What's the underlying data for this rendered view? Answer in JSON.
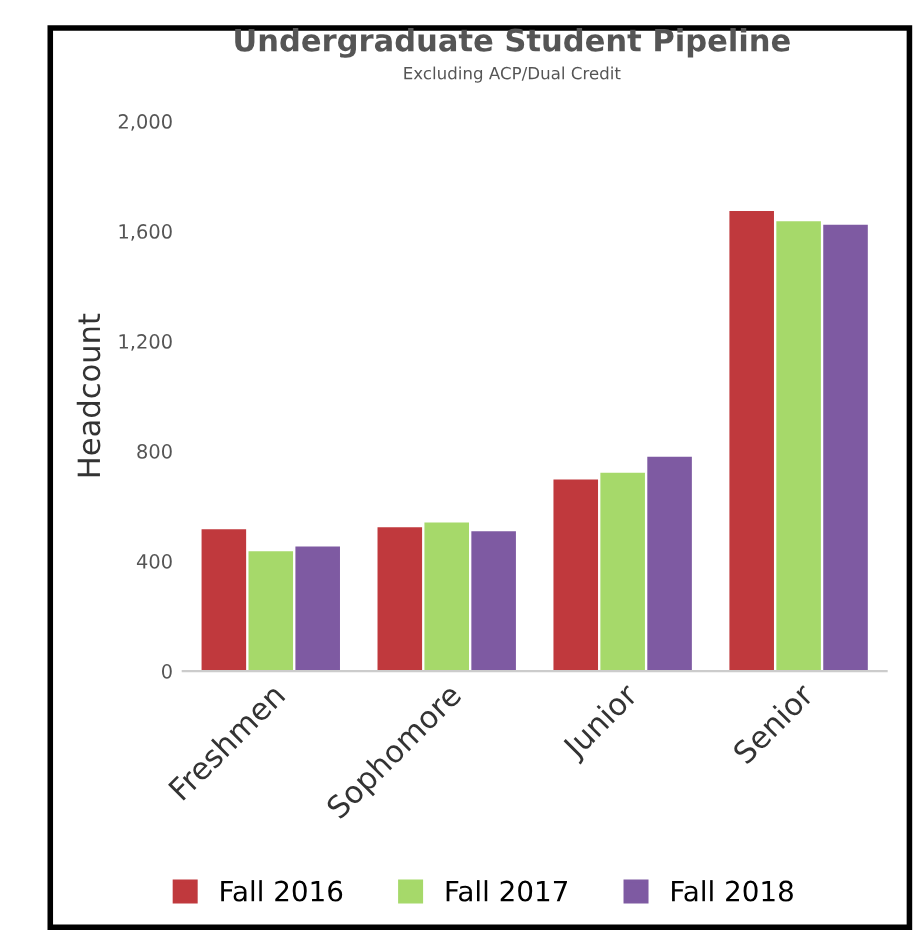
{
  "chart_data": {
    "type": "bar",
    "title": "Undergraduate Student Pipeline",
    "subtitle": "Excluding ACP/Dual Credit",
    "ylabel": "Headcount",
    "categories": [
      "Freshmen",
      "Sophomore",
      "Junior",
      "Senior"
    ],
    "series": [
      {
        "name": "Fall 2016",
        "color": "#c0393d",
        "values": [
          516,
          523,
          697,
          1673
        ]
      },
      {
        "name": "Fall 2017",
        "color": "#a6d96a",
        "values": [
          436,
          540,
          721,
          1636
        ]
      },
      {
        "name": "Fall 2018",
        "color": "#7e5aa2",
        "values": [
          453,
          508,
          779,
          1623
        ]
      }
    ],
    "ylim": [
      0,
      2000
    ],
    "yticks": [
      {
        "value": 0,
        "label": "0"
      },
      {
        "value": 400,
        "label": "400"
      },
      {
        "value": 800,
        "label": "800"
      },
      {
        "value": 1200,
        "label": "1,200"
      },
      {
        "value": 1600,
        "label": "1,600"
      },
      {
        "value": 2000,
        "label": "2,000"
      }
    ],
    "grid": false,
    "legend": "bottom"
  }
}
